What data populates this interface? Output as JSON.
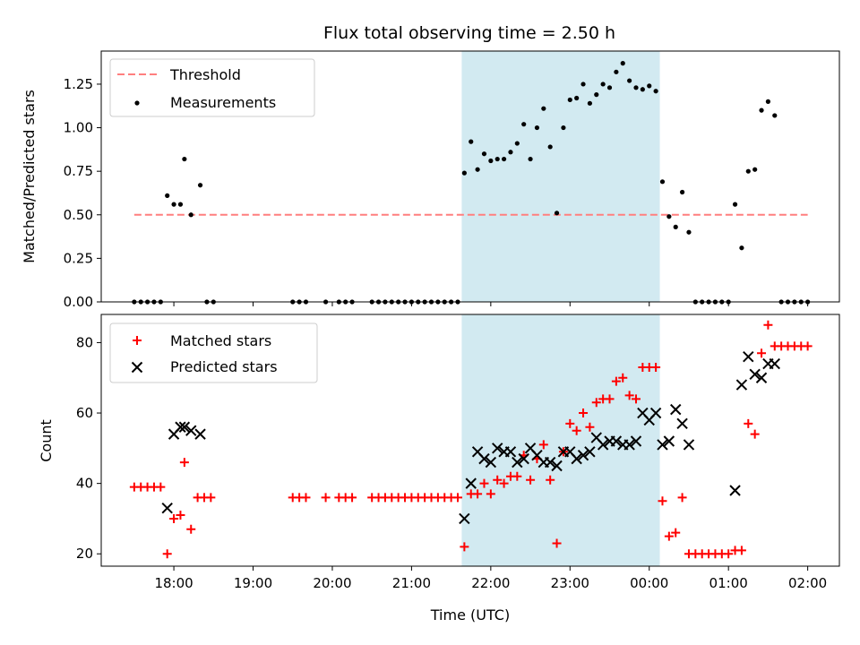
{
  "title": "Flux total observing time = 2.50 h",
  "colors": {
    "threshold": "#ff7f7f",
    "measurements": "#000000",
    "matched": "#ff0000",
    "predicted": "#000000",
    "highlight": "#add8e6"
  },
  "chart_data": [
    {
      "type": "scatter",
      "ylabel": "Matched/Predicted stars",
      "ylim": [
        0,
        1.44
      ],
      "yticks": [
        "0.00",
        "0.25",
        "0.50",
        "0.75",
        "1.00",
        "1.25"
      ],
      "legend": {
        "placement": "top-left",
        "entries": [
          "Threshold",
          "Measurements"
        ]
      },
      "highlight_span": [
        "21:38",
        "00:08"
      ],
      "threshold": {
        "name": "Threshold",
        "value": 0.5,
        "x_range": [
          "17:30",
          "02:00"
        ]
      },
      "series": [
        {
          "name": "Measurements",
          "points": [
            [
              "17:30",
              0
            ],
            [
              "17:35",
              0
            ],
            [
              "17:40",
              0
            ],
            [
              "17:45",
              0
            ],
            [
              "17:50",
              0
            ],
            [
              "17:55",
              0.61
            ],
            [
              "18:00",
              0.56
            ],
            [
              "18:05",
              0.56
            ],
            [
              "18:08",
              0.82
            ],
            [
              "18:13",
              0.5
            ],
            [
              "18:20",
              0.67
            ],
            [
              "18:25",
              0
            ],
            [
              "18:30",
              0
            ],
            [
              "19:30",
              0
            ],
            [
              "19:35",
              0
            ],
            [
              "19:40",
              0
            ],
            [
              "19:55",
              0
            ],
            [
              "20:05",
              0
            ],
            [
              "20:10",
              0
            ],
            [
              "20:15",
              0
            ],
            [
              "20:30",
              0
            ],
            [
              "20:35",
              0
            ],
            [
              "20:40",
              0
            ],
            [
              "20:45",
              0
            ],
            [
              "20:50",
              0
            ],
            [
              "20:55",
              0
            ],
            [
              "21:00",
              0
            ],
            [
              "21:05",
              0
            ],
            [
              "21:10",
              0
            ],
            [
              "21:15",
              0
            ],
            [
              "21:20",
              0
            ],
            [
              "21:25",
              0
            ],
            [
              "21:30",
              0
            ],
            [
              "21:35",
              0
            ],
            [
              "21:40",
              0.74
            ],
            [
              "21:45",
              0.92
            ],
            [
              "21:50",
              0.76
            ],
            [
              "21:55",
              0.85
            ],
            [
              "22:00",
              0.81
            ],
            [
              "22:05",
              0.82
            ],
            [
              "22:10",
              0.82
            ],
            [
              "22:15",
              0.86
            ],
            [
              "22:20",
              0.91
            ],
            [
              "22:25",
              1.02
            ],
            [
              "22:30",
              0.82
            ],
            [
              "22:35",
              1.0
            ],
            [
              "22:40",
              1.11
            ],
            [
              "22:45",
              0.89
            ],
            [
              "22:50",
              0.51
            ],
            [
              "22:55",
              1.0
            ],
            [
              "23:00",
              1.16
            ],
            [
              "23:05",
              1.17
            ],
            [
              "23:10",
              1.25
            ],
            [
              "23:15",
              1.14
            ],
            [
              "23:20",
              1.19
            ],
            [
              "23:25",
              1.25
            ],
            [
              "23:30",
              1.23
            ],
            [
              "23:35",
              1.32
            ],
            [
              "23:40",
              1.37
            ],
            [
              "23:45",
              1.27
            ],
            [
              "23:50",
              1.23
            ],
            [
              "23:55",
              1.22
            ],
            [
              "00:00",
              1.24
            ],
            [
              "00:05",
              1.21
            ],
            [
              "00:10",
              0.69
            ],
            [
              "00:15",
              0.49
            ],
            [
              "00:20",
              0.43
            ],
            [
              "00:25",
              0.63
            ],
            [
              "00:30",
              0.4
            ],
            [
              "00:35",
              0
            ],
            [
              "00:40",
              0
            ],
            [
              "00:45",
              0
            ],
            [
              "00:50",
              0
            ],
            [
              "00:55",
              0
            ],
            [
              "01:00",
              0
            ],
            [
              "01:05",
              0.56
            ],
            [
              "01:10",
              0.31
            ],
            [
              "01:15",
              0.75
            ],
            [
              "01:20",
              0.76
            ],
            [
              "01:25",
              1.1
            ],
            [
              "01:30",
              1.15
            ],
            [
              "01:35",
              1.07
            ],
            [
              "01:40",
              0
            ],
            [
              "01:45",
              0
            ],
            [
              "01:50",
              0
            ],
            [
              "01:55",
              0
            ],
            [
              "02:00",
              0
            ]
          ]
        }
      ]
    },
    {
      "type": "scatter",
      "xlabel": "Time (UTC)",
      "ylabel": "Count",
      "ylim": [
        16.5,
        88
      ],
      "yticks": [
        "20",
        "40",
        "60",
        "80"
      ],
      "xticks": [
        "18:00",
        "19:00",
        "20:00",
        "21:00",
        "22:00",
        "23:00",
        "00:00",
        "01:00",
        "02:00"
      ],
      "legend": {
        "placement": "top-left",
        "entries": [
          "Matched stars",
          "Predicted stars"
        ]
      },
      "highlight_span": [
        "21:38",
        "00:08"
      ],
      "series": [
        {
          "name": "Matched stars",
          "points": [
            [
              "17:30",
              39
            ],
            [
              "17:35",
              39
            ],
            [
              "17:40",
              39
            ],
            [
              "17:45",
              39
            ],
            [
              "17:50",
              39
            ],
            [
              "17:55",
              20
            ],
            [
              "18:00",
              30
            ],
            [
              "18:05",
              31
            ],
            [
              "18:08",
              46
            ],
            [
              "18:13",
              27
            ],
            [
              "18:18",
              36
            ],
            [
              "18:23",
              36
            ],
            [
              "18:28",
              36
            ],
            [
              "19:30",
              36
            ],
            [
              "19:35",
              36
            ],
            [
              "19:40",
              36
            ],
            [
              "19:55",
              36
            ],
            [
              "20:05",
              36
            ],
            [
              "20:10",
              36
            ],
            [
              "20:15",
              36
            ],
            [
              "20:30",
              36
            ],
            [
              "20:35",
              36
            ],
            [
              "20:40",
              36
            ],
            [
              "20:45",
              36
            ],
            [
              "20:50",
              36
            ],
            [
              "20:55",
              36
            ],
            [
              "21:00",
              36
            ],
            [
              "21:05",
              36
            ],
            [
              "21:10",
              36
            ],
            [
              "21:15",
              36
            ],
            [
              "21:20",
              36
            ],
            [
              "21:25",
              36
            ],
            [
              "21:30",
              36
            ],
            [
              "21:35",
              36
            ],
            [
              "21:40",
              22
            ],
            [
              "21:45",
              37
            ],
            [
              "21:50",
              37
            ],
            [
              "21:55",
              40
            ],
            [
              "22:00",
              37
            ],
            [
              "22:05",
              41
            ],
            [
              "22:10",
              40
            ],
            [
              "22:15",
              42
            ],
            [
              "22:20",
              42
            ],
            [
              "22:25",
              48
            ],
            [
              "22:30",
              41
            ],
            [
              "22:35",
              47
            ],
            [
              "22:40",
              51
            ],
            [
              "22:45",
              41
            ],
            [
              "22:50",
              23
            ],
            [
              "22:55",
              49
            ],
            [
              "23:00",
              57
            ],
            [
              "23:05",
              55
            ],
            [
              "23:10",
              60
            ],
            [
              "23:15",
              56
            ],
            [
              "23:20",
              63
            ],
            [
              "23:25",
              64
            ],
            [
              "23:30",
              64
            ],
            [
              "23:35",
              69
            ],
            [
              "23:40",
              70
            ],
            [
              "23:45",
              65
            ],
            [
              "23:50",
              64
            ],
            [
              "23:55",
              73
            ],
            [
              "00:00",
              73
            ],
            [
              "00:05",
              73
            ],
            [
              "00:10",
              35
            ],
            [
              "00:15",
              25
            ],
            [
              "00:20",
              26
            ],
            [
              "00:25",
              36
            ],
            [
              "00:30",
              20
            ],
            [
              "00:35",
              20
            ],
            [
              "00:40",
              20
            ],
            [
              "00:45",
              20
            ],
            [
              "00:50",
              20
            ],
            [
              "00:55",
              20
            ],
            [
              "01:00",
              20
            ],
            [
              "01:05",
              21
            ],
            [
              "01:10",
              21
            ],
            [
              "01:15",
              57
            ],
            [
              "01:20",
              54
            ],
            [
              "01:25",
              77
            ],
            [
              "01:30",
              85
            ],
            [
              "01:35",
              79
            ],
            [
              "01:40",
              79
            ],
            [
              "01:45",
              79
            ],
            [
              "01:50",
              79
            ],
            [
              "01:55",
              79
            ],
            [
              "02:00",
              79
            ]
          ]
        },
        {
          "name": "Predicted stars",
          "points": [
            [
              "17:55",
              33
            ],
            [
              "18:00",
              54
            ],
            [
              "18:05",
              56
            ],
            [
              "18:08",
              56
            ],
            [
              "18:13",
              55
            ],
            [
              "18:20",
              54
            ],
            [
              "21:40",
              30
            ],
            [
              "21:45",
              40
            ],
            [
              "21:50",
              49
            ],
            [
              "21:55",
              47
            ],
            [
              "22:00",
              46
            ],
            [
              "22:05",
              50
            ],
            [
              "22:10",
              49
            ],
            [
              "22:15",
              49
            ],
            [
              "22:20",
              46
            ],
            [
              "22:25",
              47
            ],
            [
              "22:30",
              50
            ],
            [
              "22:35",
              48
            ],
            [
              "22:40",
              46
            ],
            [
              "22:45",
              46
            ],
            [
              "22:50",
              45
            ],
            [
              "22:55",
              49
            ],
            [
              "23:00",
              49
            ],
            [
              "23:05",
              47
            ],
            [
              "23:10",
              48
            ],
            [
              "23:15",
              49
            ],
            [
              "23:20",
              53
            ],
            [
              "23:25",
              51
            ],
            [
              "23:30",
              52
            ],
            [
              "23:35",
              52
            ],
            [
              "23:40",
              51
            ],
            [
              "23:45",
              51
            ],
            [
              "23:50",
              52
            ],
            [
              "23:55",
              60
            ],
            [
              "00:00",
              58
            ],
            [
              "00:05",
              60
            ],
            [
              "00:10",
              51
            ],
            [
              "00:15",
              52
            ],
            [
              "00:20",
              61
            ],
            [
              "00:25",
              57
            ],
            [
              "00:30",
              51
            ],
            [
              "01:05",
              38
            ],
            [
              "01:10",
              68
            ],
            [
              "01:15",
              76
            ],
            [
              "01:20",
              71
            ],
            [
              "01:25",
              70
            ],
            [
              "01:30",
              74
            ],
            [
              "01:35",
              74
            ]
          ]
        }
      ]
    }
  ]
}
